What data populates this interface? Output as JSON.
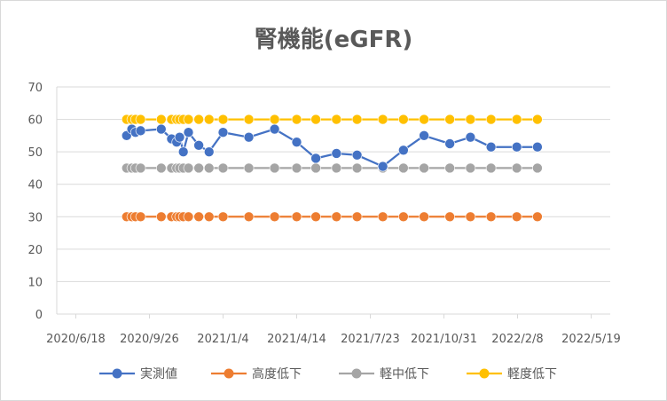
{
  "chart_data": {
    "type": "line",
    "title": "腎機能(eGFR)",
    "xlabel": "",
    "ylabel": "",
    "ylim": [
      0,
      70
    ],
    "yticks": [
      0,
      10,
      20,
      30,
      40,
      50,
      60,
      70
    ],
    "xlim": [
      "2020-06-18",
      "2022-05-19"
    ],
    "xtick_labels": [
      "2020/6/18",
      "2020/9/26",
      "2021/1/4",
      "2021/4/14",
      "2021/7/23",
      "2021/10/31",
      "2022/2/8",
      "2022/5/19"
    ],
    "grid": "horizontal",
    "legend_position": "bottom",
    "x": [
      "2020-08-26",
      "2020-09-02",
      "2020-09-07",
      "2020-09-14",
      "2020-10-12",
      "2020-10-26",
      "2020-11-02",
      "2020-11-06",
      "2020-11-11",
      "2020-11-18",
      "2020-12-02",
      "2020-12-16",
      "2021-01-04",
      "2021-02-08",
      "2021-03-15",
      "2021-04-14",
      "2021-05-10",
      "2021-06-07",
      "2021-07-05",
      "2021-08-09",
      "2021-09-06",
      "2021-10-04",
      "2021-11-08",
      "2021-12-06",
      "2022-01-03",
      "2022-02-07",
      "2022-03-07"
    ],
    "series": [
      {
        "name": "実測値",
        "color": "#4472C4",
        "values": [
          55.0,
          57.0,
          56.0,
          56.5,
          57.0,
          54.0,
          53.0,
          54.5,
          50.0,
          56.0,
          52.0,
          50.0,
          56.0,
          54.5,
          57.0,
          53.0,
          48.0,
          49.5,
          49.0,
          45.5,
          50.5,
          55.0,
          52.5,
          54.5,
          51.5,
          51.5,
          51.5
        ]
      },
      {
        "name": "高度低下",
        "color": "#ED7D31",
        "values": [
          30,
          30,
          30,
          30,
          30,
          30,
          30,
          30,
          30,
          30,
          30,
          30,
          30,
          30,
          30,
          30,
          30,
          30,
          30,
          30,
          30,
          30,
          30,
          30,
          30,
          30,
          30
        ]
      },
      {
        "name": "軽中低下",
        "color": "#A5A5A5",
        "values": [
          45,
          45,
          45,
          45,
          45,
          45,
          45,
          45,
          45,
          45,
          45,
          45,
          45,
          45,
          45,
          45,
          45,
          45,
          45,
          45,
          45,
          45,
          45,
          45,
          45,
          45,
          45
        ]
      },
      {
        "name": "軽度低下",
        "color": "#FFC000",
        "values": [
          60,
          60,
          60,
          60,
          60,
          60,
          60,
          60,
          60,
          60,
          60,
          60,
          60,
          60,
          60,
          60,
          60,
          60,
          60,
          60,
          60,
          60,
          60,
          60,
          60,
          60,
          60
        ]
      }
    ]
  }
}
